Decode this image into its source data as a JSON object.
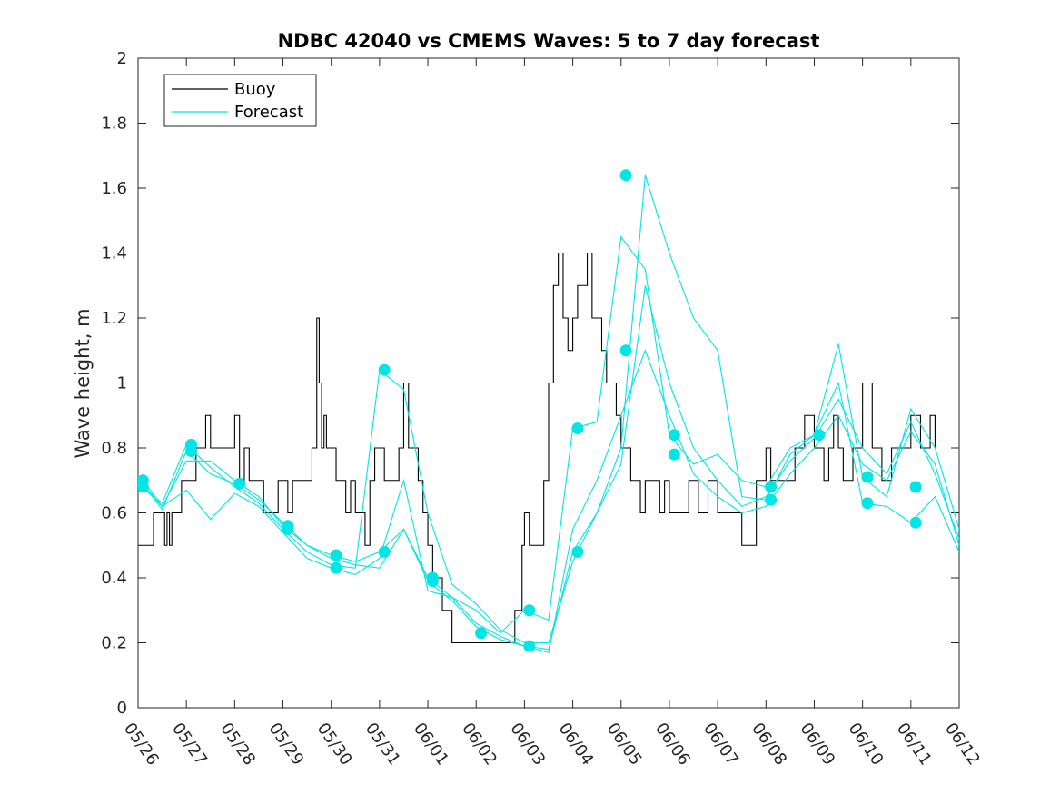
{
  "chart_data": {
    "type": "line",
    "title": "NDBC 42040 vs CMEMS Waves: 5 to 7 day forecast",
    "xlabel": "",
    "ylabel": "Wave height, m",
    "xlim": [
      "05/26",
      "06/12"
    ],
    "ylim": [
      0,
      2
    ],
    "yticks": [
      "0",
      "0.2",
      "0.4",
      "0.6",
      "0.8",
      "1",
      "1.2",
      "1.4",
      "1.6",
      "1.8",
      "2"
    ],
    "xticks": [
      "05/26",
      "05/27",
      "05/28",
      "05/29",
      "05/30",
      "05/31",
      "06/01",
      "06/02",
      "06/03",
      "06/04",
      "06/05",
      "06/06",
      "06/07",
      "06/08",
      "06/09",
      "06/10",
      "06/11",
      "06/12"
    ],
    "legend": {
      "position": "top-left",
      "entries": [
        {
          "label": "Buoy",
          "color": "#000000"
        },
        {
          "label": "Forecast",
          "color": "#00e5e5"
        }
      ]
    },
    "series": [
      {
        "name": "Buoy",
        "color": "#000000",
        "x": [
          0,
          0.3,
          0.32,
          0.5,
          0.55,
          0.6,
          0.65,
          0.7,
          0.8,
          0.9,
          1.0,
          1.2,
          1.4,
          1.5,
          1.6,
          1.8,
          2.0,
          2.1,
          2.2,
          2.3,
          2.4,
          2.6,
          2.8,
          2.9,
          3.0,
          3.1,
          3.2,
          3.4,
          3.6,
          3.7,
          3.75,
          3.8,
          3.85,
          3.9,
          4.0,
          4.1,
          4.2,
          4.25,
          4.3,
          4.4,
          4.5,
          4.6,
          4.7,
          4.8,
          4.9,
          5.0,
          5.1,
          5.2,
          5.3,
          5.4,
          5.5,
          5.6,
          5.7,
          5.8,
          5.9,
          6.0,
          6.1,
          6.3,
          6.5,
          7.0,
          7.3,
          7.5,
          7.8,
          7.95,
          8.0,
          8.1,
          8.3,
          8.4,
          8.5,
          8.6,
          8.7,
          8.8,
          8.9,
          9.0,
          9.1,
          9.2,
          9.3,
          9.4,
          9.5,
          9.6,
          9.7,
          9.8,
          9.9,
          10.0,
          10.1,
          10.2,
          10.3,
          10.4,
          10.5,
          10.6,
          10.7,
          10.8,
          10.9,
          11.0,
          11.2,
          11.4,
          11.6,
          11.8,
          12.0,
          12.5,
          12.6,
          12.8,
          13.0,
          13.1,
          13.2,
          13.4,
          13.6,
          13.8,
          14.0,
          14.2,
          14.3,
          14.4,
          14.5,
          14.6,
          14.8,
          15.0,
          15.2,
          15.4,
          15.6,
          15.8,
          16.0,
          16.2,
          16.4,
          16.5
        ],
        "y": [
          0.5,
          0.5,
          0.6,
          0.6,
          0.5,
          0.6,
          0.5,
          0.6,
          0.6,
          0.7,
          0.7,
          0.8,
          0.9,
          0.8,
          0.8,
          0.8,
          0.9,
          0.7,
          0.8,
          0.7,
          0.7,
          0.6,
          0.6,
          0.7,
          0.7,
          0.6,
          0.7,
          0.7,
          0.8,
          1.2,
          1.0,
          0.8,
          0.9,
          0.8,
          0.8,
          0.7,
          0.7,
          0.7,
          0.6,
          0.7,
          0.6,
          0.6,
          0.5,
          0.7,
          0.8,
          0.8,
          0.7,
          0.7,
          0.7,
          0.8,
          1.0,
          0.8,
          0.8,
          0.7,
          0.6,
          0.5,
          0.4,
          0.3,
          0.2,
          0.2,
          0.2,
          0.2,
          0.3,
          0.5,
          0.6,
          0.5,
          0.5,
          0.7,
          1.0,
          1.3,
          1.4,
          1.2,
          1.1,
          1.2,
          1.3,
          1.3,
          1.4,
          1.2,
          1.2,
          1.1,
          1.0,
          1.0,
          0.9,
          0.8,
          0.8,
          0.7,
          0.7,
          0.6,
          0.7,
          0.7,
          0.7,
          0.6,
          0.7,
          0.6,
          0.6,
          0.7,
          0.6,
          0.7,
          0.6,
          0.5,
          0.5,
          0.7,
          0.8,
          0.7,
          0.7,
          0.7,
          0.8,
          0.9,
          0.8,
          0.7,
          0.8,
          0.9,
          0.8,
          0.7,
          0.8,
          1.0,
          0.8,
          0.7,
          0.8,
          0.8,
          0.9,
          0.8,
          0.9,
          0.8
        ]
      },
      {
        "name": "Forecast",
        "color": "#00e5e5",
        "x": [
          0.1,
          0.5,
          1.0,
          1.5,
          2.0,
          2.5,
          3.0,
          3.5,
          4.0,
          4.5,
          5.0,
          5.5,
          6.0,
          6.5,
          7.0,
          7.5,
          8.0,
          8.5,
          9.0,
          9.5,
          10.0,
          10.5,
          11.0,
          11.5,
          12.0,
          12.5,
          13.0,
          13.5,
          14.0,
          14.5,
          15.0,
          15.5,
          16.0,
          16.5,
          17.0
        ],
        "y": [
          0.7,
          0.62,
          0.76,
          0.76,
          0.7,
          0.65,
          0.56,
          0.5,
          0.46,
          0.44,
          0.43,
          0.55,
          0.39,
          0.33,
          0.25,
          0.21,
          0.19,
          0.17,
          0.55,
          0.7,
          0.9,
          1.1,
          0.9,
          0.72,
          0.65,
          0.6,
          0.62,
          0.72,
          0.8,
          0.9,
          0.75,
          0.7,
          0.85,
          0.75,
          0.5
        ]
      },
      {
        "name": "Forecast",
        "color": "#00e5e5",
        "x": [
          0.1,
          0.5,
          1.0,
          1.5,
          2.0,
          2.5,
          3.0,
          3.5,
          4.0,
          4.5,
          5.0,
          5.5,
          6.0,
          6.5,
          7.0,
          7.5,
          8.0,
          8.5,
          9.0,
          9.5,
          10.0,
          10.5,
          11.0,
          11.5,
          12.0,
          12.5,
          13.0,
          13.5,
          14.0,
          14.5,
          15.0,
          15.5,
          16.0,
          16.5,
          17.0
        ],
        "y": [
          0.68,
          0.63,
          0.81,
          0.74,
          0.68,
          0.63,
          0.55,
          0.48,
          0.44,
          0.43,
          1.04,
          0.98,
          0.6,
          0.38,
          0.32,
          0.24,
          0.2,
          0.2,
          0.45,
          0.6,
          0.75,
          1.3,
          1.0,
          0.8,
          0.7,
          0.62,
          0.65,
          0.76,
          0.83,
          0.95,
          0.8,
          0.72,
          0.88,
          0.72,
          0.52
        ]
      },
      {
        "name": "Forecast",
        "color": "#00e5e5",
        "x": [
          0.1,
          0.5,
          1.0,
          1.5,
          2.0,
          2.5,
          3.0,
          3.5,
          4.0,
          4.5,
          5.0,
          5.5,
          6.0,
          6.5,
          7.0,
          7.5,
          8.0,
          8.5,
          9.0,
          9.5,
          10.0,
          10.5,
          11.0,
          11.5,
          12.0,
          12.5,
          13.0,
          13.5,
          14.0,
          14.5,
          15.0,
          15.5,
          16.0,
          16.5,
          17.0
        ],
        "y": [
          0.69,
          0.61,
          0.79,
          0.72,
          0.69,
          0.64,
          0.57,
          0.5,
          0.47,
          0.45,
          0.48,
          0.55,
          0.4,
          0.34,
          0.3,
          0.23,
          0.3,
          0.27,
          0.86,
          0.88,
          1.45,
          1.35,
          0.84,
          0.75,
          0.78,
          0.7,
          0.68,
          0.8,
          0.84,
          1.12,
          0.71,
          0.65,
          0.92,
          0.8,
          0.55
        ]
      },
      {
        "name": "Forecast",
        "color": "#00e5e5",
        "x": [
          0.1,
          0.5,
          1.0,
          1.5,
          2.0,
          2.5,
          3.0,
          3.5,
          4.0,
          4.5,
          5.0,
          5.5,
          6.0,
          6.5,
          7.0,
          7.5,
          8.0,
          8.5,
          9.0,
          9.5,
          10.0,
          10.5,
          11.0,
          11.5,
          12.0,
          12.5,
          13.0,
          13.5,
          14.0,
          14.5,
          15.0,
          15.5,
          16.0,
          16.5,
          17.0
        ],
        "y": [
          0.68,
          0.62,
          0.67,
          0.58,
          0.66,
          0.62,
          0.54,
          0.46,
          0.43,
          0.41,
          0.46,
          0.7,
          0.36,
          0.34,
          0.26,
          0.22,
          0.19,
          0.18,
          0.48,
          0.6,
          0.8,
          1.64,
          1.4,
          1.2,
          1.1,
          0.65,
          0.64,
          0.78,
          0.84,
          1.0,
          0.63,
          0.62,
          0.57,
          0.65,
          0.48
        ]
      }
    ],
    "markers": [
      {
        "x": 0.1,
        "y": 0.7
      },
      {
        "x": 0.1,
        "y": 0.68
      },
      {
        "x": 1.1,
        "y": 0.81
      },
      {
        "x": 1.1,
        "y": 0.79
      },
      {
        "x": 2.1,
        "y": 0.69
      },
      {
        "x": 3.1,
        "y": 0.56
      },
      {
        "x": 3.1,
        "y": 0.55
      },
      {
        "x": 4.1,
        "y": 0.47
      },
      {
        "x": 4.1,
        "y": 0.43
      },
      {
        "x": 5.1,
        "y": 1.04
      },
      {
        "x": 5.1,
        "y": 0.48
      },
      {
        "x": 6.1,
        "y": 0.4
      },
      {
        "x": 6.1,
        "y": 0.39
      },
      {
        "x": 7.1,
        "y": 0.23
      },
      {
        "x": 8.1,
        "y": 0.3
      },
      {
        "x": 8.1,
        "y": 0.19
      },
      {
        "x": 9.1,
        "y": 0.86
      },
      {
        "x": 9.1,
        "y": 0.48
      },
      {
        "x": 10.1,
        "y": 1.64
      },
      {
        "x": 10.1,
        "y": 1.1
      },
      {
        "x": 11.1,
        "y": 0.84
      },
      {
        "x": 11.1,
        "y": 0.78
      },
      {
        "x": 13.1,
        "y": 0.68
      },
      {
        "x": 13.1,
        "y": 0.64
      },
      {
        "x": 14.1,
        "y": 0.84
      },
      {
        "x": 15.1,
        "y": 0.71
      },
      {
        "x": 15.1,
        "y": 0.63
      },
      {
        "x": 16.1,
        "y": 0.68
      },
      {
        "x": 16.1,
        "y": 0.57
      }
    ]
  }
}
